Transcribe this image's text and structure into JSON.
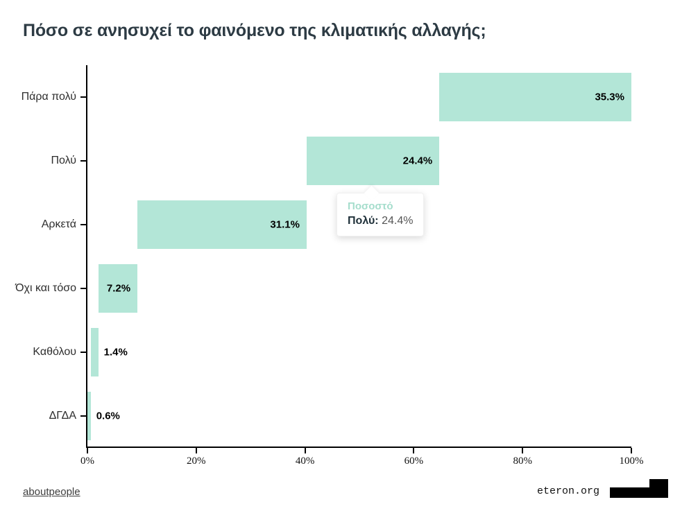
{
  "title": "Πόσο σε ανησυχεί το φαινόμενο της κλιματικής αλλαγής;",
  "chart_data": {
    "type": "bar",
    "subtype": "horizontal-waterfall",
    "title": "Πόσο σε ανησυχεί το φαινόμενο της κλιματικής αλλαγής;",
    "series_name": "Ποσοστό",
    "categories": [
      "Πάρα πολύ",
      "Πολύ",
      "Αρκετά",
      "Όχι και τόσο",
      "Καθόλου",
      "ΔΓΔΑ"
    ],
    "values": [
      35.3,
      24.4,
      31.1,
      7.2,
      1.4,
      0.6
    ],
    "bar_starts": [
      64.7,
      40.3,
      9.2,
      2.0,
      0.6,
      0.0
    ],
    "value_labels": [
      "35.3%",
      "24.4%",
      "31.1%",
      "7.2%",
      "1.4%",
      "0.6%"
    ],
    "x_ticks": [
      0,
      20,
      40,
      60,
      80,
      100
    ],
    "x_tick_labels": [
      "0%",
      "20%",
      "40%",
      "60%",
      "80%",
      "100%"
    ],
    "xlim": [
      0,
      100
    ],
    "grid": false,
    "legend": "none",
    "bar_color": "#b3e6d7",
    "axis_color": "#000000"
  },
  "tooltip": {
    "series": "Ποσοστό",
    "category_label": "Πολύ:",
    "value": "24.4%"
  },
  "footer": {
    "left_link": "aboutpeople",
    "right_text": "eteron.org"
  }
}
